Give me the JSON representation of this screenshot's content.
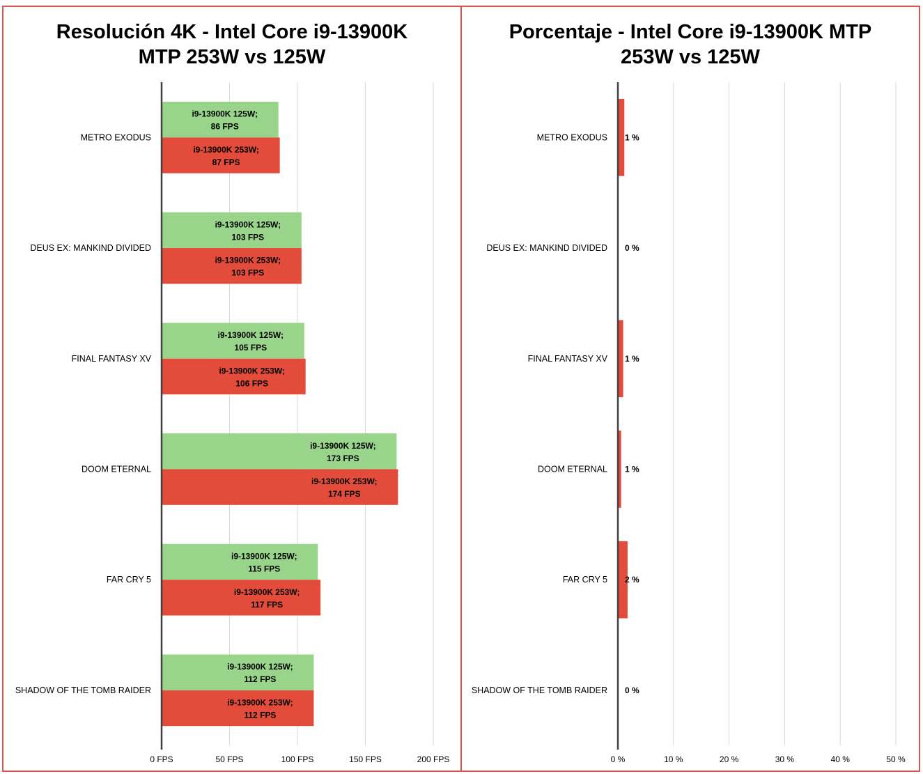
{
  "chart_data": [
    {
      "type": "bar",
      "orientation": "horizontal",
      "title_lines": [
        "Resolución 4K - Intel Core i9-13900K",
        "MTP 253W vs 125W"
      ],
      "categories": [
        "METRO EXODUS",
        "DEUS EX: MANKIND DIVIDED",
        "FINAL FANTASY XV",
        "DOOM ETERNAL",
        "FAR CRY 5",
        "SHADOW OF THE TOMB RAIDER"
      ],
      "series": [
        {
          "name": "i9-13900K 125W",
          "color": "#98d48a",
          "values": [
            86,
            103,
            105,
            173,
            115,
            112
          ],
          "labels": [
            [
              "i9-13900K 125W;",
              "86 FPS"
            ],
            [
              "i9-13900K 125W;",
              "103 FPS"
            ],
            [
              "i9-13900K 125W;",
              "105 FPS"
            ],
            [
              "i9-13900K 125W;",
              "173 FPS"
            ],
            [
              "i9-13900K 125W;",
              "115 FPS"
            ],
            [
              "i9-13900K 125W;",
              "112 FPS"
            ]
          ]
        },
        {
          "name": "i9-13900K 253W",
          "color": "#e34c3a",
          "values": [
            87,
            103,
            106,
            174,
            117,
            112
          ],
          "labels": [
            [
              "i9-13900K 253W;",
              "87 FPS"
            ],
            [
              "i9-13900K 253W;",
              "103 FPS"
            ],
            [
              "i9-13900K 253W;",
              "106 FPS"
            ],
            [
              "i9-13900K 253W;",
              "174 FPS"
            ],
            [
              "i9-13900K 253W;",
              "117 FPS"
            ],
            [
              "i9-13900K 253W;",
              "112 FPS"
            ]
          ]
        }
      ],
      "xlim": [
        0,
        200
      ],
      "xticks": [
        0,
        50,
        100,
        150,
        200
      ],
      "xtick_labels": [
        "0 FPS",
        "50 FPS",
        "100 FPS",
        "150 FPS",
        "200 FPS"
      ],
      "grid": true,
      "legend": "none"
    },
    {
      "type": "bar",
      "orientation": "horizontal",
      "title_lines": [
        "Porcentaje - Intel Core i9-13900K MTP",
        "253W vs 125W"
      ],
      "categories": [
        "METRO EXODUS",
        "DEUS EX: MANKIND DIVIDED",
        "FINAL FANTASY XV",
        "DOOM ETERNAL",
        "FAR CRY 5",
        "SHADOW OF THE TOMB RAIDER"
      ],
      "series": [
        {
          "color": "#e34c3a",
          "values": [
            1.16,
            0,
            0.95,
            0.58,
            1.74,
            0
          ],
          "labels": [
            "1 %",
            "0 %",
            "1 %",
            "1 %",
            "2 %",
            "0 %"
          ]
        }
      ],
      "xlim": [
        0,
        50
      ],
      "xticks": [
        0,
        10,
        20,
        30,
        40,
        50
      ],
      "xtick_labels": [
        "0 %",
        "10 %",
        "20 %",
        "30 %",
        "40 %",
        "50 %"
      ],
      "grid": true,
      "legend": "none"
    }
  ]
}
